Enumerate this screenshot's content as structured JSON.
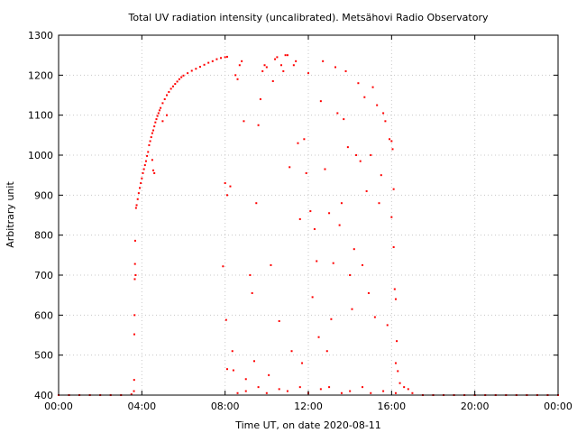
{
  "chart_data": {
    "type": "scatter",
    "title": "Total UV radiation intensity (uncalibrated). Metsähovi Radio Observatory",
    "xlabel": "Time UT, on date 2020-08-11",
    "ylabel": "Arbitrary unit",
    "xlim": [
      0,
      24
    ],
    "ylim": [
      400,
      1300
    ],
    "x_unit": "hours UT",
    "x_ticks": [
      0,
      4,
      8,
      12,
      16,
      20,
      24
    ],
    "x_tick_labels": [
      "00:00",
      "04:00",
      "08:00",
      "12:00",
      "16:00",
      "20:00",
      "00:00"
    ],
    "y_ticks": [
      400,
      500,
      600,
      700,
      800,
      900,
      1000,
      1100,
      1200,
      1300
    ],
    "y_tick_labels": [
      "400",
      "500",
      "600",
      "700",
      "800",
      "900",
      "1000",
      "1100",
      "1200",
      "1300"
    ],
    "grid": true,
    "legend": "none",
    "marker_color": "#ff0000",
    "series": [
      {
        "points": [
          [
            0.0,
            400
          ],
          [
            0.5,
            400
          ],
          [
            1.0,
            400
          ],
          [
            1.5,
            400
          ],
          [
            2.0,
            400
          ],
          [
            2.5,
            400
          ],
          [
            3.0,
            400
          ],
          [
            3.5,
            402
          ],
          [
            3.62,
            410
          ],
          [
            3.63,
            438
          ],
          [
            3.64,
            552
          ],
          [
            3.65,
            600
          ],
          [
            3.66,
            690
          ],
          [
            3.67,
            728
          ],
          [
            3.68,
            786
          ],
          [
            3.7,
            700
          ],
          [
            3.72,
            868
          ],
          [
            3.75,
            875
          ],
          [
            3.8,
            890
          ],
          [
            3.85,
            905
          ],
          [
            3.9,
            918
          ],
          [
            3.95,
            930
          ],
          [
            4.0,
            942
          ],
          [
            4.05,
            955
          ],
          [
            4.1,
            965
          ],
          [
            4.15,
            975
          ],
          [
            4.2,
            985
          ],
          [
            4.25,
            998
          ],
          [
            4.3,
            1008
          ],
          [
            4.35,
            1025
          ],
          [
            4.4,
            1035
          ],
          [
            4.45,
            1045
          ],
          [
            4.5,
            1055
          ],
          [
            4.55,
            1062
          ],
          [
            4.6,
            1072
          ],
          [
            4.65,
            1082
          ],
          [
            4.7,
            1090
          ],
          [
            4.75,
            1098
          ],
          [
            4.8,
            1105
          ],
          [
            4.85,
            1112
          ],
          [
            4.9,
            1118
          ],
          [
            5.0,
            1130
          ],
          [
            5.1,
            1140
          ],
          [
            5.2,
            1150
          ],
          [
            5.3,
            1158
          ],
          [
            5.4,
            1166
          ],
          [
            5.5,
            1172
          ],
          [
            5.6,
            1178
          ],
          [
            5.7,
            1184
          ],
          [
            5.8,
            1190
          ],
          [
            5.9,
            1195
          ],
          [
            6.0,
            1199
          ],
          [
            6.2,
            1205
          ],
          [
            6.4,
            1211
          ],
          [
            6.6,
            1216
          ],
          [
            6.8,
            1221
          ],
          [
            7.0,
            1226
          ],
          [
            7.2,
            1231
          ],
          [
            7.4,
            1235
          ],
          [
            7.6,
            1240
          ],
          [
            7.8,
            1243
          ],
          [
            8.0,
            1245
          ],
          [
            8.1,
            1246
          ],
          [
            4.5,
            988
          ],
          [
            4.55,
            962
          ],
          [
            4.6,
            955
          ],
          [
            5.0,
            1085
          ],
          [
            5.2,
            1100
          ],
          [
            7.9,
            722
          ],
          [
            8.0,
            930
          ],
          [
            8.1,
            900
          ],
          [
            8.25,
            922
          ],
          [
            8.35,
            510
          ],
          [
            8.05,
            588
          ],
          [
            8.1,
            465
          ],
          [
            8.4,
            462
          ],
          [
            8.5,
            1200
          ],
          [
            8.6,
            1190
          ],
          [
            8.7,
            1225
          ],
          [
            8.8,
            1235
          ],
          [
            8.9,
            1085
          ],
          [
            9.0,
            440
          ],
          [
            9.2,
            700
          ],
          [
            9.3,
            655
          ],
          [
            9.4,
            485
          ],
          [
            9.5,
            880
          ],
          [
            9.6,
            1075
          ],
          [
            9.7,
            1140
          ],
          [
            9.8,
            1210
          ],
          [
            9.9,
            1225
          ],
          [
            10.0,
            1220
          ],
          [
            10.1,
            450
          ],
          [
            10.2,
            725
          ],
          [
            10.3,
            1185
          ],
          [
            10.4,
            1240
          ],
          [
            10.5,
            1245
          ],
          [
            10.6,
            585
          ],
          [
            10.7,
            1225
          ],
          [
            10.8,
            1210
          ],
          [
            10.9,
            1250
          ],
          [
            11.0,
            1250
          ],
          [
            11.1,
            970
          ],
          [
            11.2,
            510
          ],
          [
            11.3,
            1225
          ],
          [
            11.4,
            1235
          ],
          [
            11.5,
            1030
          ],
          [
            11.6,
            840
          ],
          [
            11.7,
            480
          ],
          [
            11.8,
            1040
          ],
          [
            11.9,
            955
          ],
          [
            12.0,
            1205
          ],
          [
            12.1,
            860
          ],
          [
            12.2,
            645
          ],
          [
            12.3,
            815
          ],
          [
            12.4,
            735
          ],
          [
            12.5,
            545
          ],
          [
            12.6,
            1135
          ],
          [
            12.7,
            1235
          ],
          [
            12.8,
            965
          ],
          [
            12.9,
            510
          ],
          [
            13.0,
            855
          ],
          [
            13.1,
            590
          ],
          [
            13.2,
            730
          ],
          [
            13.3,
            1220
          ],
          [
            13.4,
            1105
          ],
          [
            13.5,
            825
          ],
          [
            13.6,
            880
          ],
          [
            13.7,
            1090
          ],
          [
            13.8,
            1210
          ],
          [
            13.9,
            1020
          ],
          [
            14.0,
            700
          ],
          [
            14.1,
            615
          ],
          [
            14.2,
            765
          ],
          [
            14.3,
            1000
          ],
          [
            14.4,
            1180
          ],
          [
            14.5,
            985
          ],
          [
            14.6,
            725
          ],
          [
            14.7,
            1145
          ],
          [
            14.8,
            910
          ],
          [
            14.9,
            655
          ],
          [
            15.0,
            1000
          ],
          [
            15.1,
            1170
          ],
          [
            15.2,
            595
          ],
          [
            15.3,
            1125
          ],
          [
            15.4,
            880
          ],
          [
            15.5,
            950
          ],
          [
            15.6,
            1105
          ],
          [
            15.7,
            1085
          ],
          [
            15.8,
            575
          ],
          [
            15.9,
            1040
          ],
          [
            16.0,
            1035
          ],
          [
            16.05,
            1015
          ],
          [
            16.1,
            915
          ],
          [
            16.15,
            665
          ],
          [
            16.2,
            640
          ],
          [
            16.25,
            535
          ],
          [
            16.3,
            460
          ],
          [
            16.0,
            845
          ],
          [
            16.1,
            770
          ],
          [
            16.2,
            480
          ],
          [
            16.4,
            430
          ],
          [
            16.6,
            420
          ],
          [
            16.8,
            415
          ],
          [
            17.0,
            405
          ],
          [
            8.6,
            405
          ],
          [
            9.0,
            410
          ],
          [
            9.6,
            420
          ],
          [
            10.0,
            405
          ],
          [
            10.6,
            415
          ],
          [
            11.0,
            410
          ],
          [
            11.6,
            420
          ],
          [
            12.0,
            405
          ],
          [
            12.6,
            415
          ],
          [
            13.0,
            420
          ],
          [
            13.6,
            405
          ],
          [
            14.0,
            410
          ],
          [
            14.6,
            420
          ],
          [
            15.0,
            405
          ],
          [
            15.6,
            410
          ],
          [
            16.2,
            405
          ],
          [
            17.5,
            400
          ],
          [
            18.0,
            400
          ],
          [
            18.5,
            400
          ],
          [
            19.0,
            400
          ],
          [
            19.5,
            400
          ],
          [
            20.0,
            400
          ],
          [
            20.5,
            400
          ],
          [
            21.0,
            400
          ],
          [
            21.5,
            400
          ],
          [
            22.0,
            400
          ],
          [
            22.5,
            400
          ],
          [
            23.0,
            400
          ],
          [
            23.5,
            400
          ],
          [
            24.0,
            400
          ]
        ]
      }
    ]
  }
}
